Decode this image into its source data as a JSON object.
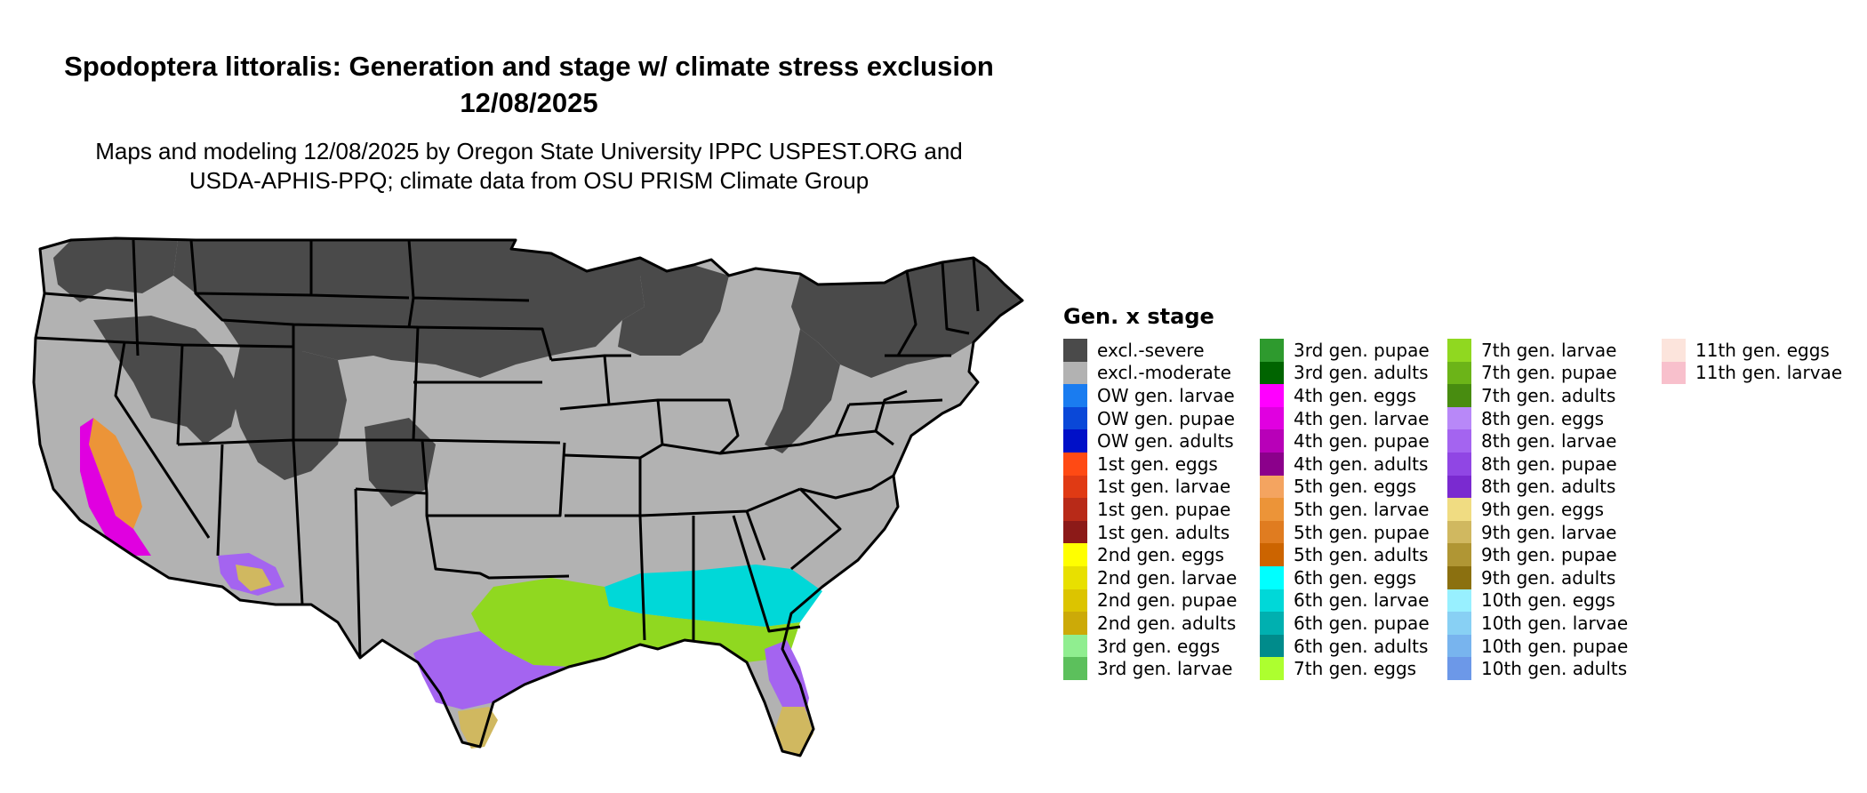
{
  "title": "Spodoptera littoralis: Generation and stage w/ climate stress exclusion 12/08/2025",
  "subtitle": "Maps and modeling 12/08/2025 by Oregon State University IPPC USPEST.ORG and USDA-APHIS-PPQ; climate data from OSU PRISM Climate Group",
  "map": {
    "region": "contiguous United States",
    "state_outline_color": "#000000"
  },
  "legend": {
    "title": "Gen. x stage",
    "columns": [
      [
        {
          "label": "excl.-severe",
          "color": "#4a4a4a"
        },
        {
          "label": "excl.-moderate",
          "color": "#b2b2b2"
        },
        {
          "label": "OW gen. larvae",
          "color": "#1a7cf0"
        },
        {
          "label": "OW gen. pupae",
          "color": "#0a48d8"
        },
        {
          "label": "OW gen. adults",
          "color": "#0010c8"
        },
        {
          "label": "1st gen. eggs",
          "color": "#ff4a14"
        },
        {
          "label": "1st gen. larvae",
          "color": "#e03a14"
        },
        {
          "label": "1st gen. pupae",
          "color": "#b82a18"
        },
        {
          "label": "1st gen. adults",
          "color": "#8c1a18"
        },
        {
          "label": "2nd gen. eggs",
          "color": "#ffff00"
        },
        {
          "label": "2nd gen. larvae",
          "color": "#e8e000"
        },
        {
          "label": "2nd gen. pupae",
          "color": "#dcc400"
        },
        {
          "label": "2nd gen. adults",
          "color": "#ccaa08"
        },
        {
          "label": "3rd gen. eggs",
          "color": "#90ee90"
        },
        {
          "label": "3rd gen. larvae",
          "color": "#5cc05c"
        }
      ],
      [
        {
          "label": "3rd gen. pupae",
          "color": "#2e9a2e"
        },
        {
          "label": "3rd gen. adults",
          "color": "#006400"
        },
        {
          "label": "4th gen. eggs",
          "color": "#ff00ff"
        },
        {
          "label": "4th gen. larvae",
          "color": "#e000e0"
        },
        {
          "label": "4th gen. pupae",
          "color": "#b800b8"
        },
        {
          "label": "4th gen. adults",
          "color": "#8b008b"
        },
        {
          "label": "5th gen. eggs",
          "color": "#f4a460"
        },
        {
          "label": "5th gen. larvae",
          "color": "#ec9438"
        },
        {
          "label": "5th gen. pupae",
          "color": "#e07c20"
        },
        {
          "label": "5th gen. adults",
          "color": "#cc6400"
        },
        {
          "label": "6th gen. eggs",
          "color": "#00ffff"
        },
        {
          "label": "6th gen. larvae",
          "color": "#00d8d8"
        },
        {
          "label": "6th gen. pupae",
          "color": "#00b0b0"
        },
        {
          "label": "6th gen. adults",
          "color": "#008b8b"
        },
        {
          "label": "7th gen. eggs",
          "color": "#adff2f"
        }
      ],
      [
        {
          "label": "7th gen. larvae",
          "color": "#90d820"
        },
        {
          "label": "7th gen. pupae",
          "color": "#6cb418"
        },
        {
          "label": "7th gen. adults",
          "color": "#488c10"
        },
        {
          "label": "8th gen. eggs",
          "color": "#b888f8"
        },
        {
          "label": "8th gen. larvae",
          "color": "#a464f0"
        },
        {
          "label": "8th gen. pupae",
          "color": "#9046e4"
        },
        {
          "label": "8th gen. adults",
          "color": "#7a2ad0"
        },
        {
          "label": "9th gen. eggs",
          "color": "#f0dc82"
        },
        {
          "label": "9th gen. larvae",
          "color": "#d0b860"
        },
        {
          "label": "9th gen. pupae",
          "color": "#b09634"
        },
        {
          "label": "9th gen. adults",
          "color": "#8b7010"
        },
        {
          "label": "10th gen. eggs",
          "color": "#98f0ff"
        },
        {
          "label": "10th gen. larvae",
          "color": "#88d0f4"
        },
        {
          "label": "10th gen. pupae",
          "color": "#78b4ee"
        },
        {
          "label": "10th gen. adults",
          "color": "#6c98e8"
        }
      ],
      [
        {
          "label": "11th gen. eggs",
          "color": "#fce4dc"
        },
        {
          "label": "11th gen. larvae",
          "color": "#f8c0cc"
        }
      ]
    ]
  }
}
